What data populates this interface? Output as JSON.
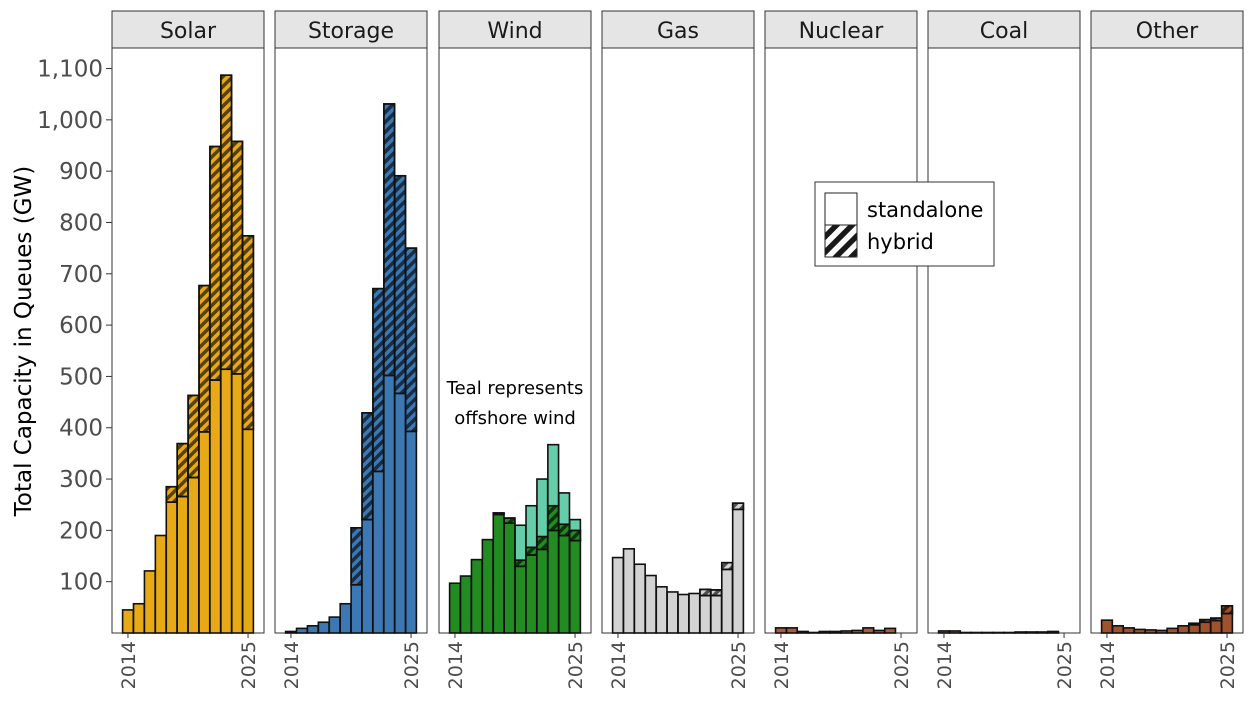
{
  "chart_data": {
    "type": "bar",
    "ylabel": "Total Capacity in Queues (GW)",
    "ylim": [
      0,
      1140
    ],
    "yticks": [
      100,
      200,
      300,
      400,
      500,
      600,
      700,
      800,
      900,
      1000,
      1100
    ],
    "ytick_labels": [
      "100",
      "200",
      "300",
      "400",
      "500",
      "600",
      "700",
      "800",
      "900",
      "1,000",
      "1,100"
    ],
    "years": [
      2014,
      2015,
      2016,
      2017,
      2018,
      2019,
      2020,
      2021,
      2022,
      2023,
      2024,
      2025
    ],
    "xtick_labels": [
      "2014",
      "2025"
    ],
    "legend": {
      "position": "upper-middle",
      "items": [
        {
          "label": "standalone",
          "pattern": "solid"
        },
        {
          "label": "hybrid",
          "pattern": "hatched"
        }
      ]
    },
    "annotation": {
      "panel": "Wind",
      "lines": [
        "Teal represents",
        "offshore wind"
      ]
    },
    "panels": [
      {
        "name": "Solar",
        "color": "#E8A917",
        "standalone": [
          45,
          57,
          121,
          190,
          255,
          266,
          303,
          392,
          493,
          514,
          505,
          397
        ],
        "hybrid": [
          0,
          0,
          0,
          0,
          30,
          103,
          160,
          285,
          455,
          573,
          453,
          377
        ]
      },
      {
        "name": "Storage",
        "color": "#3C78B4",
        "standalone": [
          3,
          9,
          14,
          21,
          31,
          57,
          94,
          221,
          315,
          502,
          467,
          393
        ],
        "hybrid": [
          0,
          0,
          0,
          0,
          0,
          0,
          111,
          208,
          356,
          529,
          424,
          357
        ]
      },
      {
        "name": "Wind",
        "color": "#228B22",
        "offshore_color": "#66CDAA",
        "standalone": [
          97,
          111,
          143,
          182,
          231,
          214,
          130,
          152,
          163,
          200,
          190,
          180
        ],
        "hybrid": [
          0,
          0,
          0,
          0,
          3,
          10,
          12,
          15,
          25,
          48,
          22,
          20
        ],
        "offshore": [
          0,
          0,
          0,
          0,
          0,
          0,
          68,
          81,
          112,
          119,
          61,
          21
        ]
      },
      {
        "name": "Gas",
        "color": "#D3D3D3",
        "standalone": [
          147,
          164,
          134,
          112,
          90,
          80,
          75,
          77,
          73,
          73,
          124,
          241
        ],
        "hybrid": [
          0,
          0,
          0,
          0,
          0,
          0,
          0,
          0,
          12,
          11,
          13,
          12
        ]
      },
      {
        "name": "Nuclear",
        "color": "#B05A3C",
        "standalone": [
          10,
          10,
          3,
          1,
          3,
          3,
          4,
          5,
          10,
          5,
          9,
          0
        ],
        "hybrid": [
          0,
          0,
          0,
          0,
          0,
          0,
          0,
          0,
          0,
          0,
          0,
          0
        ]
      },
      {
        "name": "Coal",
        "color": "#B05A3C",
        "standalone": [
          4,
          4,
          1,
          1,
          1,
          1,
          1,
          2,
          2,
          2,
          3,
          0
        ],
        "hybrid": [
          0,
          0,
          0,
          0,
          0,
          0,
          0,
          0,
          0,
          0,
          0,
          0
        ]
      },
      {
        "name": "Other",
        "color": "#A0522D",
        "standalone": [
          25,
          14,
          10,
          7,
          6,
          5,
          9,
          14,
          16,
          21,
          24,
          38
        ],
        "hybrid": [
          0,
          0,
          0,
          0,
          0,
          0,
          0,
          0,
          3,
          5,
          5,
          15
        ]
      }
    ]
  }
}
